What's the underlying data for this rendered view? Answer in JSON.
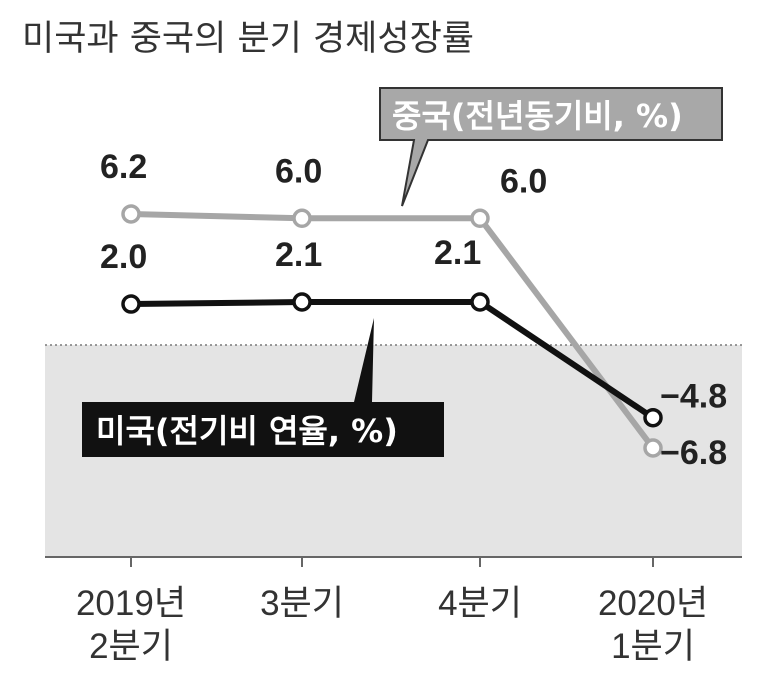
{
  "chart_data": {
    "type": "line",
    "title": "미국과 중국의 분기 경제성장률",
    "categories": [
      [
        "2019년",
        "2분기"
      ],
      [
        "3분기"
      ],
      [
        "4분기"
      ],
      [
        "2020년",
        "1분기"
      ]
    ],
    "series": [
      {
        "name": "중국(전년동기비, %)",
        "values": [
          6.2,
          6.0,
          6.0,
          -6.8
        ],
        "labels": [
          "6.2",
          "6.0",
          "6.0",
          "−6.8"
        ],
        "color": "#a6a6a6"
      },
      {
        "name": "미국(전기비 연율, %)",
        "values": [
          2.0,
          2.1,
          2.1,
          -4.8
        ],
        "labels": [
          "2.0",
          "2.1",
          "2.1",
          "−4.8"
        ],
        "color": "#111111"
      }
    ],
    "shaded_region": {
      "from": 0,
      "to": -8,
      "color": "#e4e4e4"
    },
    "ylim": [
      -8,
      6.2
    ],
    "grid": false
  }
}
